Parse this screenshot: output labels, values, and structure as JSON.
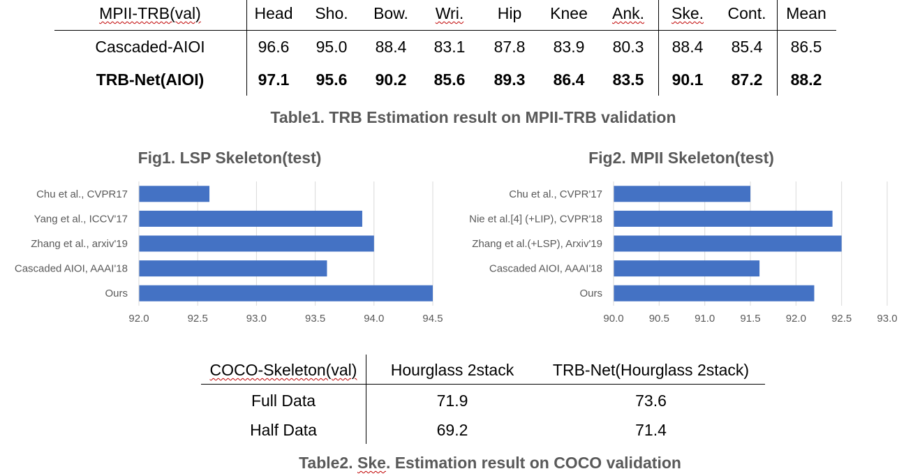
{
  "table1": {
    "header": [
      "MPII-TRB(val)",
      "Head",
      "Sho.",
      "Bow.",
      "Wri.",
      "Hip",
      "Knee",
      "Ank.",
      "Ske.",
      "Cont.",
      "Mean"
    ],
    "rows": [
      {
        "name": "Cascaded-AIOI",
        "values": [
          "96.6",
          "95.0",
          "88.4",
          "83.1",
          "87.8",
          "83.9",
          "80.3",
          "88.4",
          "85.4",
          "86.5"
        ]
      },
      {
        "name": "TRB-Net(AIOI)",
        "values": [
          "97.1",
          "95.6",
          "90.2",
          "85.6",
          "89.3",
          "86.4",
          "83.5",
          "90.1",
          "87.2",
          "88.2"
        ]
      }
    ],
    "caption": "Table1. TRB Estimation result on MPII-TRB validation"
  },
  "chart_data": [
    {
      "type": "bar",
      "orientation": "horizontal",
      "title": "Fig1. LSP Skeleton(test)",
      "categories": [
        "Chu et al., CVPR17",
        "Yang et al., ICCV'17",
        "Zhang et al., arxiv'19",
        "Cascaded AIOI, AAAI'18",
        "Ours"
      ],
      "values": [
        92.6,
        93.9,
        94.0,
        93.6,
        94.5
      ],
      "xlim": [
        92.0,
        94.5
      ],
      "xticks": [
        "92.0",
        "92.5",
        "93.0",
        "93.5",
        "94.0",
        "94.5"
      ],
      "grid": true,
      "bar_color": "#4472c4"
    },
    {
      "type": "bar",
      "orientation": "horizontal",
      "title": "Fig2. MPII Skeleton(test)",
      "categories": [
        "Chu et al., CVPR'17",
        "Nie et al.[4] (+LIP), CVPR'18",
        "Zhang et al.(+LSP), Arxiv'19",
        "Cascaded AIOI, AAAI'18",
        "Ours"
      ],
      "values": [
        91.5,
        92.4,
        92.5,
        91.6,
        92.2
      ],
      "xlim": [
        90.0,
        93.0
      ],
      "xticks": [
        "90.0",
        "90.5",
        "91.0",
        "91.5",
        "92.0",
        "92.5",
        "93.0"
      ],
      "grid": true,
      "bar_color": "#4472c4"
    }
  ],
  "table2": {
    "header": [
      "COCO-Skeleton(val)",
      "Hourglass 2stack",
      "TRB-Net(Hourglass 2stack)"
    ],
    "rows": [
      {
        "name": "Full Data",
        "values": [
          "71.9",
          "73.6"
        ]
      },
      {
        "name": "Half Data",
        "values": [
          "69.2",
          "71.4"
        ]
      }
    ],
    "caption_pre": "Table2.  ",
    "caption_ske": "Ske",
    "caption_post": ". Estimation result on COCO validation"
  }
}
